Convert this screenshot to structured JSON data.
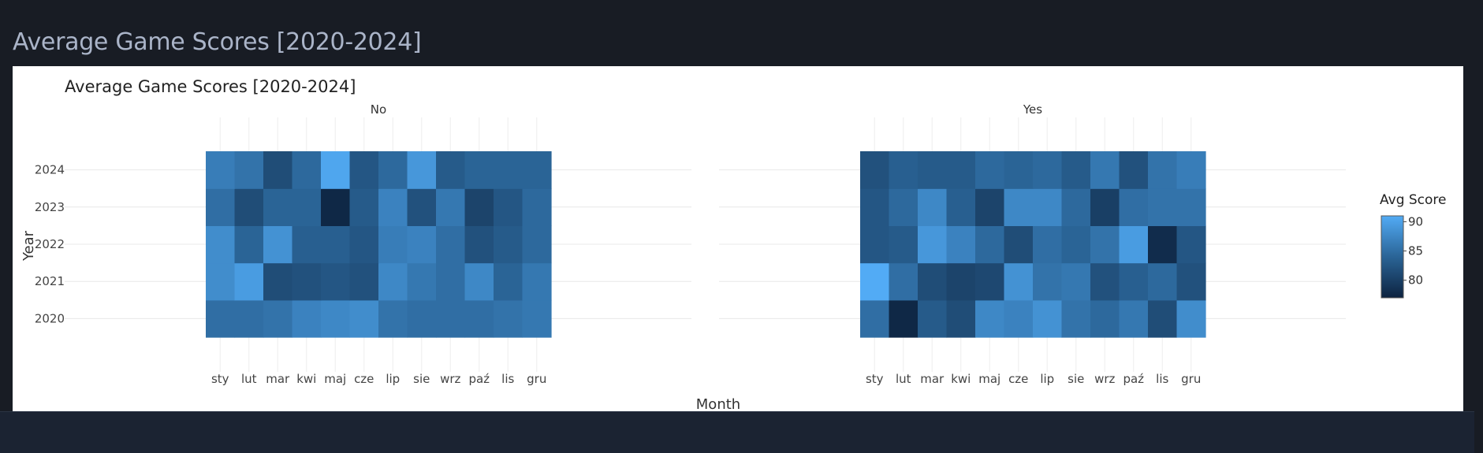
{
  "page": {
    "title": "Average Game Scores [2020-2024]"
  },
  "chart_data": {
    "type": "heatmap",
    "title": "Average Game Scores [2020-2024]",
    "xlabel": "Month",
    "ylabel": "Year",
    "x": [
      "sty",
      "lut",
      "mar",
      "kwi",
      "maj",
      "cze",
      "lip",
      "sie",
      "wrz",
      "paź",
      "lis",
      "gru"
    ],
    "y": [
      "2020",
      "2021",
      "2022",
      "2023",
      "2024"
    ],
    "facets": [
      {
        "name": "No",
        "z": [
          [
            85,
            85,
            85.5,
            87,
            87.5,
            88,
            85.5,
            85,
            85,
            85,
            85.5,
            86
          ],
          [
            88,
            89.5,
            81.5,
            82,
            82.5,
            82,
            87.5,
            86,
            85,
            87.5,
            84,
            86
          ],
          [
            88,
            84,
            88.5,
            83.5,
            83.5,
            82.5,
            86.5,
            87,
            85,
            82,
            83,
            84.5
          ],
          [
            85,
            81.5,
            84,
            84,
            77.5,
            83,
            87,
            82,
            86,
            80.5,
            82.5,
            84.5
          ],
          [
            86.5,
            85.5,
            81.5,
            84.5,
            90.5,
            82.5,
            84.5,
            89,
            83,
            84,
            84,
            84
          ]
        ]
      },
      {
        "name": "Yes",
        "z": [
          [
            85,
            77.5,
            83,
            81.5,
            87.5,
            87,
            88.5,
            85.5,
            84.5,
            86,
            81.5,
            88
          ],
          [
            91,
            85,
            81.5,
            80.5,
            81,
            88.5,
            85.5,
            86,
            82,
            83.5,
            84.5,
            82
          ],
          [
            82.5,
            83,
            89,
            87,
            84.5,
            81.5,
            85,
            84,
            85.5,
            89.5,
            78,
            82.5
          ],
          [
            82.5,
            84.5,
            87.5,
            83.5,
            80.5,
            87.5,
            87.5,
            84.5,
            80,
            85,
            85.5,
            85.5
          ],
          [
            82,
            83.5,
            83,
            83,
            84.5,
            84,
            84.5,
            83,
            86,
            82,
            85.5,
            86.5
          ]
        ]
      }
    ],
    "colorbar": {
      "title": "Avg Score",
      "ticks": [
        80,
        85,
        90
      ],
      "range": [
        77,
        91
      ]
    },
    "colorscale": [
      "#0d2340",
      "#2a6496",
      "#52abf5"
    ]
  }
}
